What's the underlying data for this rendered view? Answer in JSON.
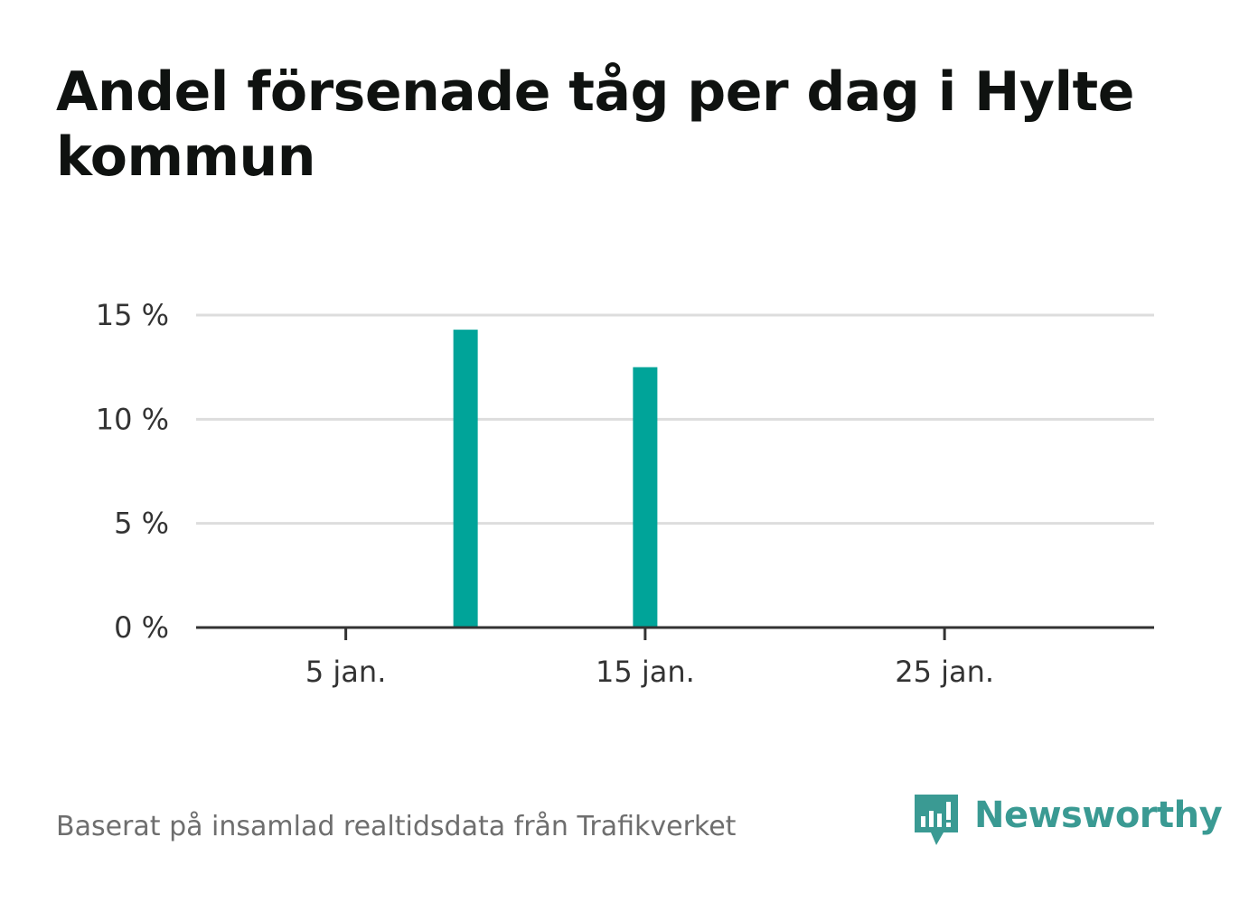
{
  "title": "Andel försenade tåg per dag i Hylte kommun",
  "source": "Baserat på insamlad realtidsdata från Trafikverket",
  "brand": {
    "name": "Newsworthy",
    "color": "#3a9a93",
    "icon": "bar-chart-speech-bubble-icon"
  },
  "colors": {
    "bar": "#00a499",
    "grid": "#dddddd",
    "axis": "#333333",
    "text": "#333333"
  },
  "chart_data": {
    "type": "bar",
    "x_type": "date",
    "x": [
      "9 jan.",
      "15 jan."
    ],
    "values": [
      14.3,
      12.5
    ],
    "xlim": [
      "0 jan.",
      "32 jan."
    ],
    "ylim": [
      0,
      15
    ],
    "yticks": [
      0,
      5,
      10,
      15
    ],
    "ytick_labels": [
      "0 %",
      "5 %",
      "10 %",
      "15 %"
    ],
    "xticks": [
      "5 jan.",
      "15 jan.",
      "25 jan."
    ],
    "xlabel": "",
    "ylabel": "",
    "grid": true,
    "legend": "none"
  }
}
